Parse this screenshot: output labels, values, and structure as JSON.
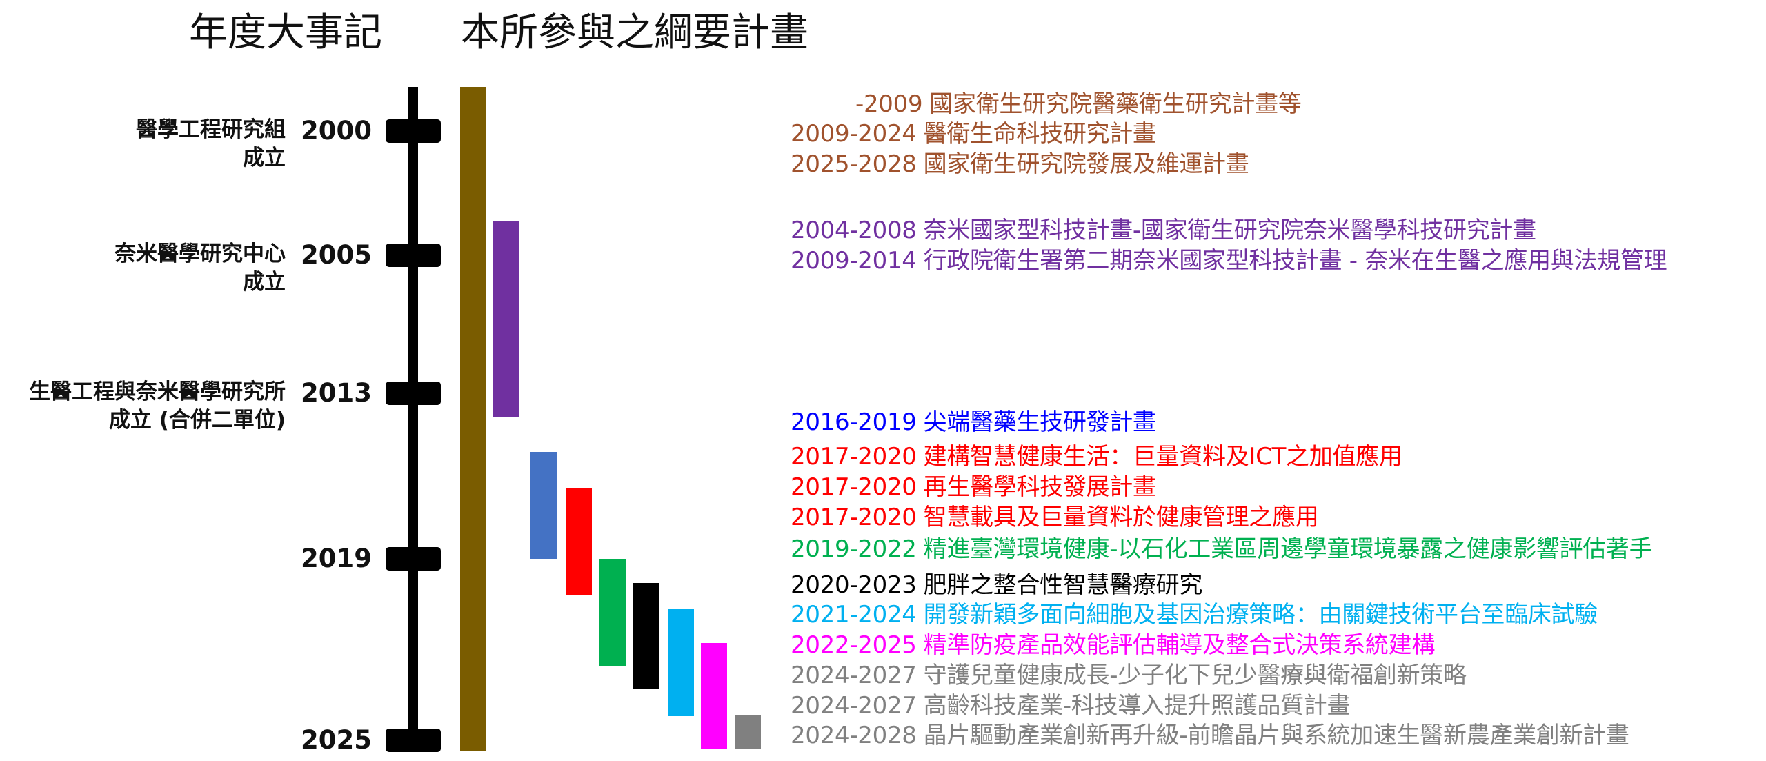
{
  "headings": {
    "events": "年度大事記",
    "plans": "本所參與之綱要計畫"
  },
  "timeline": {
    "year_range": [
      2000,
      2025
    ],
    "milestones": [
      {
        "year": "2000",
        "event": "醫學工程研究組成立",
        "event_lines": [
          "醫學工程研究組",
          "成立"
        ]
      },
      {
        "year": "2005",
        "event": "奈米醫學研究中心成立",
        "event_lines": [
          "奈米醫學研究中心",
          "成立"
        ]
      },
      {
        "year": "2013",
        "event": "生醫工程與奈米醫學研究所成立 (合併二單位)",
        "event_lines": [
          "生醫工程與奈米醫學研究所",
          "成立 (合併二單位)"
        ]
      },
      {
        "year": "2019",
        "event": "",
        "event_lines": []
      },
      {
        "year": "2025",
        "event": "",
        "event_lines": []
      }
    ]
  },
  "gantt": {
    "bars": [
      {
        "name": "main-program",
        "start": 2000,
        "end": 2025,
        "color": "#7a5c00"
      },
      {
        "name": "nano-program",
        "start": 2004,
        "end": 2014,
        "color": "#7030a0"
      },
      {
        "name": "blue-program",
        "start": 2016,
        "end": 2019,
        "color": "#4472c4"
      },
      {
        "name": "red-program",
        "start": 2017,
        "end": 2020,
        "color": "#ff0000"
      },
      {
        "name": "green-program",
        "start": 2019,
        "end": 2022,
        "color": "#00b050"
      },
      {
        "name": "black-program",
        "start": 2020,
        "end": 2023,
        "color": "#000000"
      },
      {
        "name": "cyan-program",
        "start": 2021,
        "end": 2024,
        "color": "#00b0f0"
      },
      {
        "name": "magenta-program",
        "start": 2022,
        "end": 2025,
        "color": "#ff00ff"
      },
      {
        "name": "gray-program",
        "start": 2024,
        "end": 2025,
        "color": "#808080"
      }
    ]
  },
  "plans": [
    {
      "years": "-2009",
      "title": "國家衛生研究院醫藥衛生研究計畫等",
      "color": "#a0522d"
    },
    {
      "years": "2009-2024",
      "title": "醫衛生命科技研究計畫",
      "color": "#a0522d"
    },
    {
      "years": "2025-2028",
      "title": "國家衛生研究院發展及維運計畫",
      "color": "#a0522d"
    },
    {
      "years": "2004-2008",
      "title": "奈米國家型科技計畫-國家衛生研究院奈米醫學科技研究計畫",
      "color": "#7030a0"
    },
    {
      "years": "2009-2014",
      "title": "行政院衛生署第二期奈米國家型科技計畫 - 奈米在生醫之應用與法規管理",
      "color": "#7030a0"
    },
    {
      "years": "2016-2019",
      "title": "尖端醫藥生技研發計畫",
      "color": "#0000ff"
    },
    {
      "years": "2017-2020",
      "title": "建構智慧健康生活：巨量資料及ICT之加值應用",
      "color": "#ff0000"
    },
    {
      "years": "2017-2020",
      "title": "再生醫學科技發展計畫",
      "color": "#ff0000"
    },
    {
      "years": "2017-2020",
      "title": "智慧載具及巨量資料於健康管理之應用",
      "color": "#ff0000"
    },
    {
      "years": "2019-2022",
      "title": "精進臺灣環境健康-以石化工業區周邊學童環境暴露之健康影響評估著手",
      "color": "#00b050"
    },
    {
      "years": "2020-2023",
      "title": "肥胖之整合性智慧醫療研究",
      "color": "#000000"
    },
    {
      "years": "2021-2024",
      "title": "開發新穎多面向細胞及基因治療策略：由關鍵技術平台至臨床試驗",
      "color": "#00b0f0"
    },
    {
      "years": "2022-2025",
      "title": "精準防疫產品效能評估輔導及整合式決策系統建構",
      "color": "#ff00ff"
    },
    {
      "years": "2024-2027",
      "title": "守護兒童健康成長-少子化下兒少醫療與衛福創新策略",
      "color": "#808080"
    },
    {
      "years": "2024-2027",
      "title": "高齡科技產業-科技導入提升照護品質計畫",
      "color": "#808080"
    },
    {
      "years": "2024-2028",
      "title": "晶片驅動產業創新再升級-前瞻晶片與系統加速生醫新農產業創新計畫",
      "color": "#808080"
    }
  ]
}
